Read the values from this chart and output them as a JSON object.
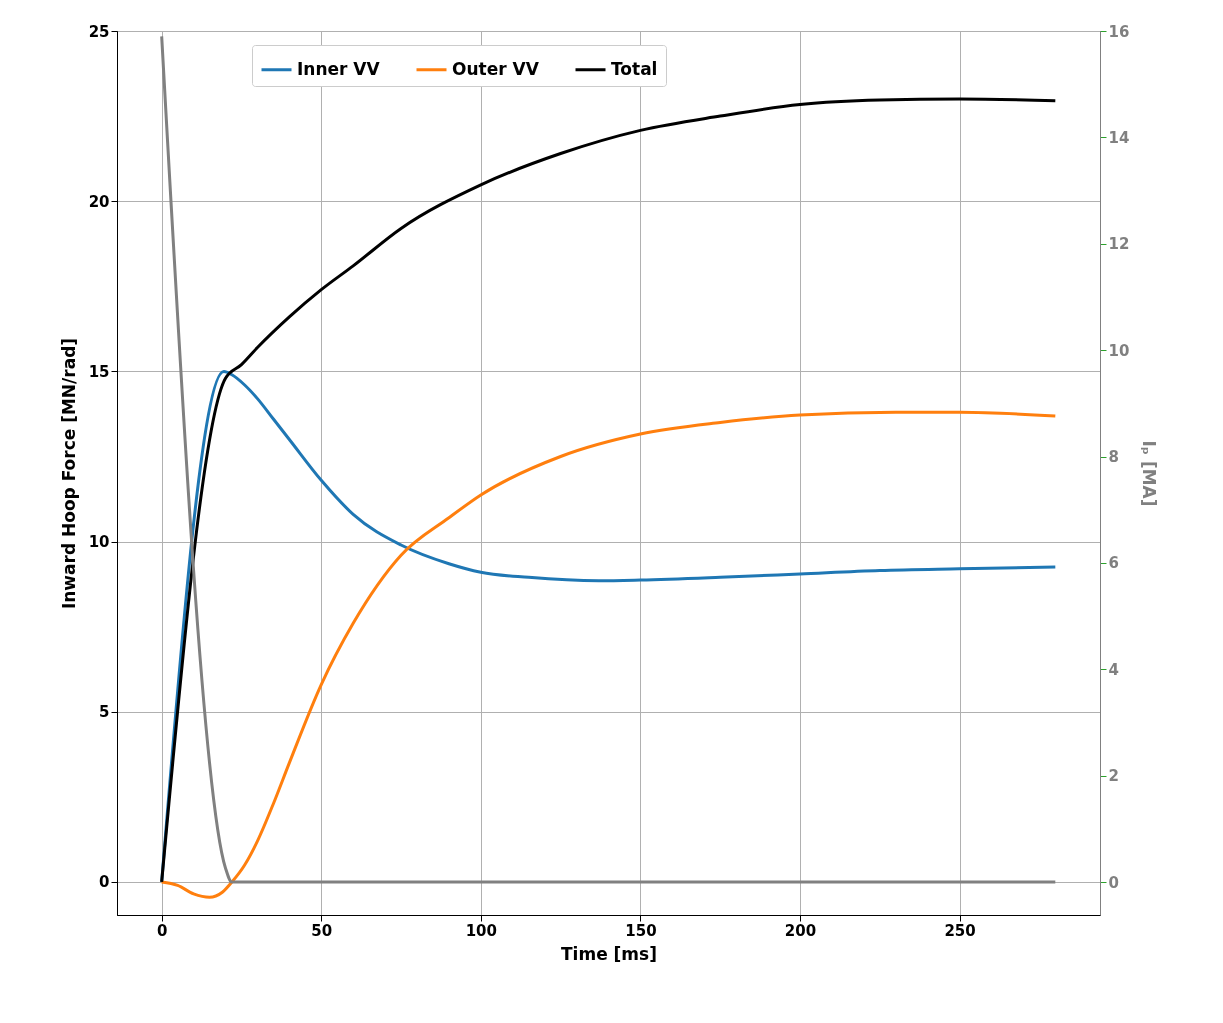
{
  "chart_data": {
    "type": "line",
    "xlabel": "Time [ms]",
    "ylabel": "Inward Hoop Force [MN/rad]",
    "y2label": "Iₚ [MA]",
    "xlim": [
      -14,
      294
    ],
    "xticks": [
      0,
      50,
      100,
      150,
      200,
      250
    ],
    "ylim": [
      -0.97,
      25
    ],
    "yticks": [
      0,
      5,
      10,
      15,
      20,
      25
    ],
    "y2lim": [
      -0.62,
      16
    ],
    "y2ticks": [
      0,
      2,
      4,
      6,
      8,
      10,
      12,
      14,
      16
    ],
    "grid": true,
    "legend": "top",
    "line_style": "solid",
    "marker": "none",
    "series": [
      {
        "name": "Inner VV",
        "color": "#1f77b4",
        "x": [
          0,
          19.5,
          22,
          26,
          30,
          35,
          40,
          50,
          60,
          75,
          90,
          100,
          115,
          137,
          150,
          175,
          200,
          225,
          250,
          280
        ],
        "values": [
          0,
          15.0,
          14.9,
          14.6,
          14.2,
          13.6,
          13.0,
          11.8,
          10.8,
          9.9,
          9.35,
          9.1,
          8.95,
          8.85,
          8.87,
          8.95,
          9.05,
          9.15,
          9.2,
          9.25
        ]
      },
      {
        "name": "Outer VV",
        "color": "#ff7f0e",
        "x": [
          0,
          5,
          10,
          15,
          19,
          22,
          26,
          30,
          35,
          40,
          50,
          60,
          75,
          90,
          100,
          125,
          150,
          175,
          200,
          230,
          250,
          280
        ],
        "values": [
          0,
          -0.1,
          -0.35,
          -0.45,
          -0.3,
          0,
          0.5,
          1.2,
          2.3,
          3.5,
          5.8,
          7.6,
          9.6,
          10.7,
          11.37,
          12.5,
          13.16,
          13.5,
          13.72,
          13.8,
          13.8,
          13.69
        ]
      },
      {
        "name": "Total",
        "color": "#000000",
        "x": [
          0,
          20,
          25,
          30,
          40,
          50,
          60,
          75,
          100,
          125,
          150,
          175,
          200,
          225,
          250,
          280
        ],
        "values": [
          0,
          14.8,
          15.2,
          15.7,
          16.6,
          17.4,
          18.1,
          19.2,
          20.48,
          21.4,
          22.08,
          22.5,
          22.84,
          22.97,
          23.0,
          22.95
        ]
      },
      {
        "color": "#808080",
        "axis": "y2",
        "x": [
          0,
          20,
          22,
          280
        ],
        "values": [
          15.9,
          0.26,
          0,
          0
        ]
      }
    ]
  }
}
